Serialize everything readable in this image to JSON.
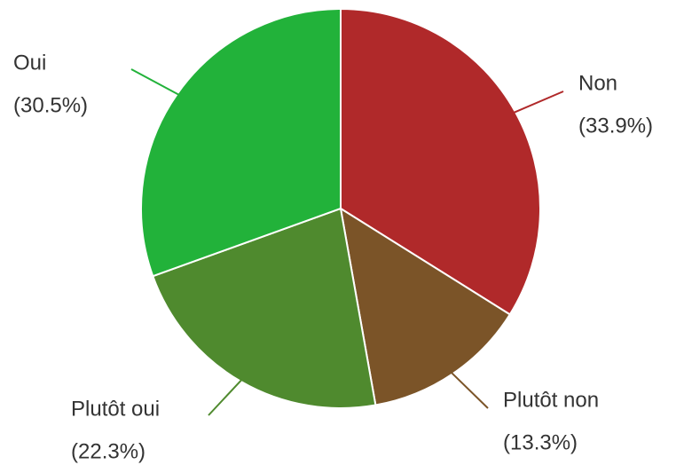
{
  "chart_data": {
    "type": "pie",
    "categories": [
      "Non",
      "Plutôt non",
      "Plutôt oui",
      "Oui"
    ],
    "values": [
      33.9,
      13.3,
      22.3,
      30.5
    ],
    "value_labels": [
      "(33.9%)",
      "(13.3%)",
      "(22.3%)",
      "(30.5%)"
    ],
    "colors": [
      "#b0292a",
      "#7b5428",
      "#4f8a2e",
      "#22b23a"
    ]
  }
}
